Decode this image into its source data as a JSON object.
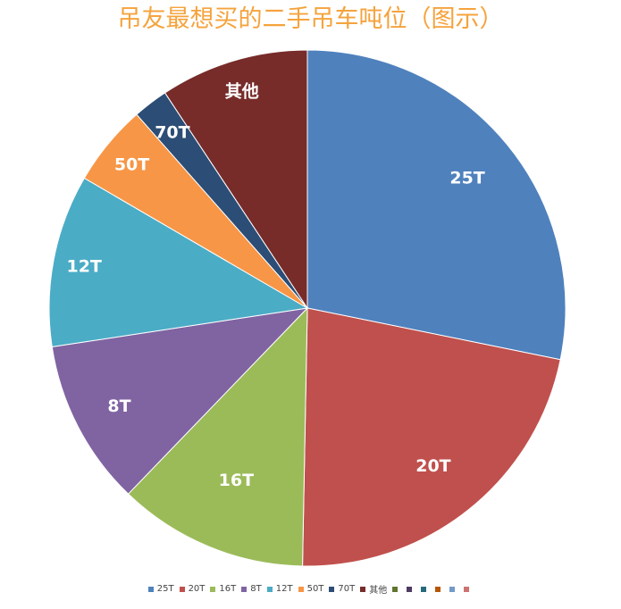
{
  "chart_data": {
    "type": "pie",
    "title": "吊友最想买的二手吊车吨位（图示）",
    "title_color": "#f5a33d",
    "legend_position": "bottom",
    "categories": [
      "25T",
      "20T",
      "16T",
      "8T",
      "12T",
      "50T",
      "70T",
      "其他"
    ],
    "values": [
      28.2,
      22.1,
      11.9,
      10.4,
      10.8,
      5.1,
      2.2,
      9.3
    ],
    "unit": "%",
    "colors": [
      "#4f81bd",
      "#c0504d",
      "#9bbb59",
      "#8064a2",
      "#4bacc6",
      "#f79646",
      "#2c4d75",
      "#772c2a"
    ],
    "clockwise_order": [
      "25T",
      "20T",
      "16T",
      "8T",
      "12T",
      "50T",
      "70T",
      "其他"
    ],
    "start_angle_deg": 0,
    "legend": {
      "entries": [
        "25T",
        "20T",
        "16T",
        "8T",
        "12T",
        "50T",
        "70T",
        "其他",
        "",
        "",
        "",
        "",
        "",
        ""
      ],
      "colors": [
        "#4f81bd",
        "#c0504d",
        "#9bbb59",
        "#8064a2",
        "#4bacc6",
        "#f79646",
        "#2c4d75",
        "#772c2a",
        "#5f7530",
        "#4d3b62",
        "#276a7c",
        "#b65708",
        "#729aca",
        "#cd7371"
      ]
    }
  }
}
